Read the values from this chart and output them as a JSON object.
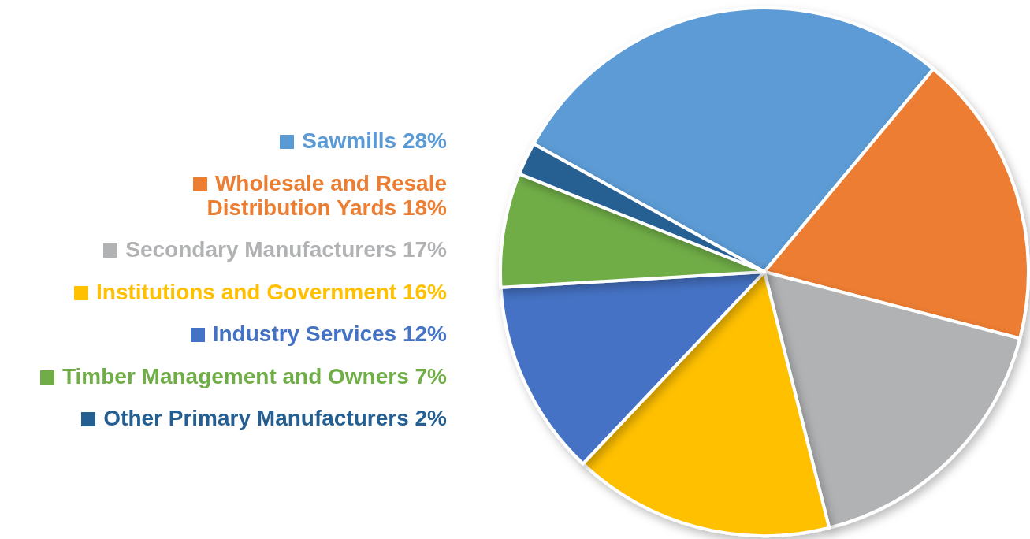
{
  "chart_data": {
    "type": "pie",
    "categories": [
      "Sawmills",
      "Wholesale and Resale Distribution Yards",
      "Secondary Manufacturers",
      "Institutions and Government",
      "Industry Services",
      "Timber Management and Owners",
      "Other Primary Manufacturers"
    ],
    "values": [
      28,
      18,
      17,
      16,
      12,
      7,
      2
    ],
    "value_labels": [
      "28%",
      "18%",
      "17%",
      "16%",
      "12%",
      "7%",
      "2%"
    ],
    "colors": [
      "#5b9bd5",
      "#ed7d31",
      "#b1b2b4",
      "#ffc000",
      "#4472c4",
      "#70ad47",
      "#255e91"
    ],
    "legend": "left"
  }
}
